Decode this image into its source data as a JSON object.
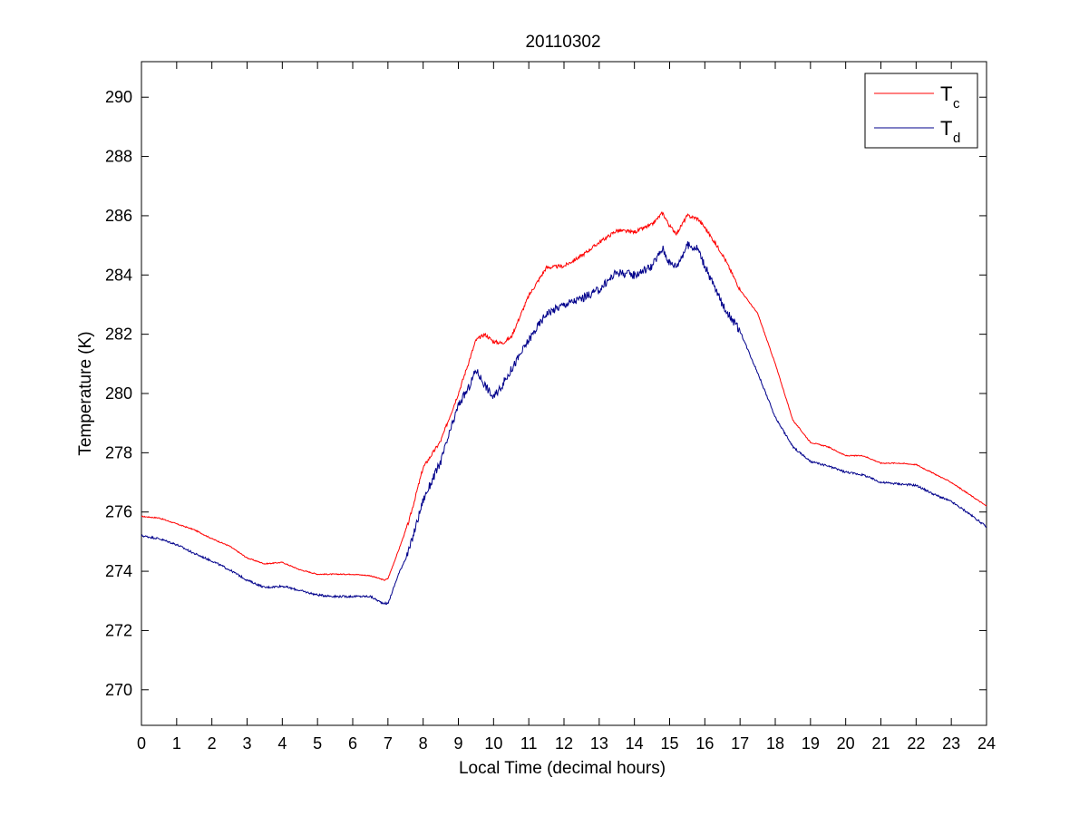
{
  "chart_data": {
    "type": "line",
    "title": "20110302",
    "xlabel": "Local Time (decimal hours)",
    "ylabel": "Temperature (K)",
    "xlim": [
      0,
      24
    ],
    "ylim": [
      268.8,
      291.2
    ],
    "xticks": [
      0,
      1,
      2,
      3,
      4,
      5,
      6,
      7,
      8,
      9,
      10,
      11,
      12,
      13,
      14,
      15,
      16,
      17,
      18,
      19,
      20,
      21,
      22,
      23,
      24
    ],
    "yticks": [
      270,
      272,
      274,
      276,
      278,
      280,
      282,
      284,
      286,
      288,
      290
    ],
    "grid": false,
    "legend_position": "top-right",
    "series": [
      {
        "name": "T",
        "name_subscript": "c",
        "color": "#ff0000",
        "points": [
          [
            0,
            275.85
          ],
          [
            0.5,
            275.8
          ],
          [
            1,
            275.6
          ],
          [
            1.5,
            275.4
          ],
          [
            2,
            275.1
          ],
          [
            2.5,
            274.85
          ],
          [
            3,
            274.45
          ],
          [
            3.5,
            274.25
          ],
          [
            4,
            274.3
          ],
          [
            4.5,
            274.05
          ],
          [
            5,
            273.9
          ],
          [
            5.5,
            273.9
          ],
          [
            6,
            273.9
          ],
          [
            6.5,
            273.85
          ],
          [
            6.9,
            273.7
          ],
          [
            7,
            273.75
          ],
          [
            7.3,
            274.7
          ],
          [
            7.6,
            275.7
          ],
          [
            8,
            277.5
          ],
          [
            8.5,
            278.4
          ],
          [
            9,
            280.0
          ],
          [
            9.5,
            281.8
          ],
          [
            9.75,
            282.0
          ],
          [
            10,
            281.75
          ],
          [
            10.25,
            281.7
          ],
          [
            10.5,
            281.9
          ],
          [
            11,
            283.3
          ],
          [
            11.5,
            284.25
          ],
          [
            12,
            284.3
          ],
          [
            12.5,
            284.65
          ],
          [
            13,
            285.1
          ],
          [
            13.5,
            285.5
          ],
          [
            14,
            285.45
          ],
          [
            14.5,
            285.7
          ],
          [
            14.8,
            286.1
          ],
          [
            15,
            285.65
          ],
          [
            15.2,
            285.4
          ],
          [
            15.5,
            286.0
          ],
          [
            15.8,
            285.9
          ],
          [
            16,
            285.6
          ],
          [
            16.5,
            284.7
          ],
          [
            17,
            283.5
          ],
          [
            17.5,
            282.7
          ],
          [
            18,
            281.0
          ],
          [
            18.5,
            279.1
          ],
          [
            19,
            278.35
          ],
          [
            19.5,
            278.2
          ],
          [
            20,
            277.9
          ],
          [
            20.5,
            277.9
          ],
          [
            21,
            277.65
          ],
          [
            21.5,
            277.65
          ],
          [
            22,
            277.6
          ],
          [
            22.5,
            277.3
          ],
          [
            23,
            277.0
          ],
          [
            23.5,
            276.6
          ],
          [
            24,
            276.2
          ]
        ]
      },
      {
        "name": "T",
        "name_subscript": "d",
        "color": "#00008b",
        "points": [
          [
            0,
            275.2
          ],
          [
            0.5,
            275.1
          ],
          [
            1,
            274.9
          ],
          [
            1.5,
            274.6
          ],
          [
            2,
            274.35
          ],
          [
            2.5,
            274.05
          ],
          [
            3,
            273.7
          ],
          [
            3.5,
            273.45
          ],
          [
            4,
            273.5
          ],
          [
            4.5,
            273.35
          ],
          [
            5,
            273.2
          ],
          [
            5.5,
            273.15
          ],
          [
            6,
            273.15
          ],
          [
            6.5,
            273.15
          ],
          [
            6.8,
            272.95
          ],
          [
            7,
            272.9
          ],
          [
            7.3,
            273.9
          ],
          [
            7.6,
            274.7
          ],
          [
            8,
            276.4
          ],
          [
            8.5,
            277.7
          ],
          [
            9,
            279.6
          ],
          [
            9.3,
            280.2
          ],
          [
            9.5,
            280.8
          ],
          [
            9.75,
            280.3
          ],
          [
            10,
            279.85
          ],
          [
            10.25,
            280.3
          ],
          [
            10.5,
            280.8
          ],
          [
            11,
            281.8
          ],
          [
            11.5,
            282.7
          ],
          [
            12,
            283.0
          ],
          [
            12.5,
            283.2
          ],
          [
            13,
            283.5
          ],
          [
            13.5,
            284.1
          ],
          [
            14,
            284.0
          ],
          [
            14.5,
            284.3
          ],
          [
            14.8,
            284.9
          ],
          [
            15,
            284.4
          ],
          [
            15.2,
            284.3
          ],
          [
            15.5,
            285.0
          ],
          [
            15.8,
            284.9
          ],
          [
            16,
            284.3
          ],
          [
            16.5,
            283.0
          ],
          [
            17,
            282.1
          ],
          [
            17.5,
            280.7
          ],
          [
            18,
            279.2
          ],
          [
            18.5,
            278.2
          ],
          [
            19,
            277.7
          ],
          [
            19.5,
            277.55
          ],
          [
            20,
            277.35
          ],
          [
            20.5,
            277.25
          ],
          [
            21,
            277.0
          ],
          [
            21.5,
            276.95
          ],
          [
            22,
            276.9
          ],
          [
            22.5,
            276.6
          ],
          [
            23,
            276.35
          ],
          [
            23.5,
            275.95
          ],
          [
            24,
            275.5
          ]
        ]
      }
    ]
  }
}
